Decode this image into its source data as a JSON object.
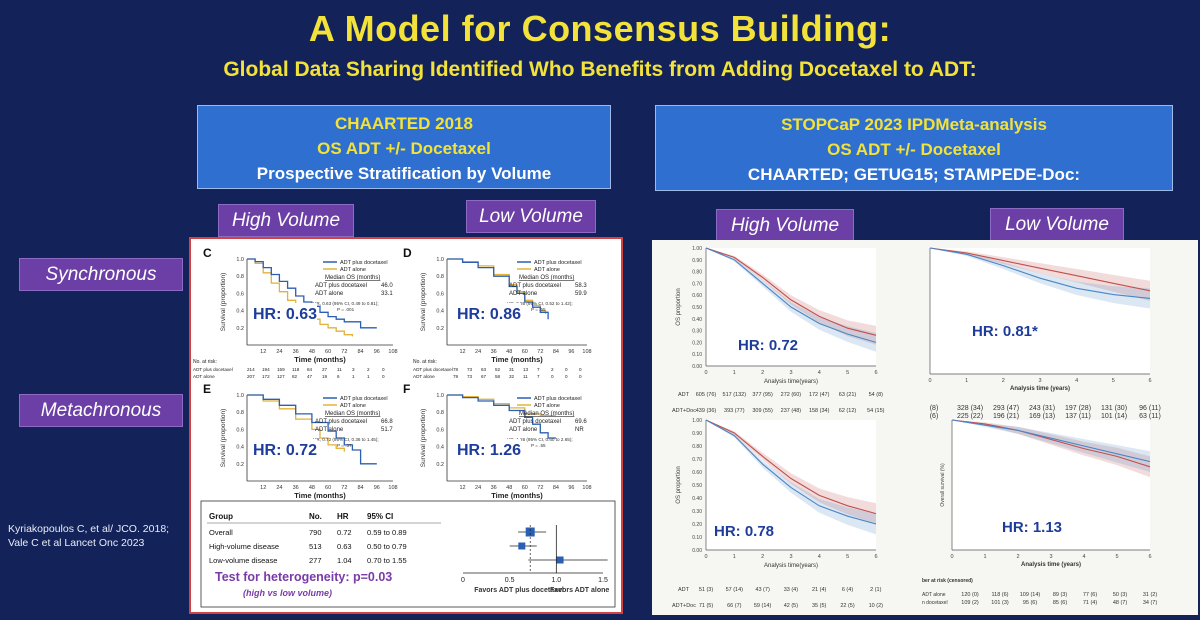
{
  "slide": {
    "title": "A Model for Consensus Building:",
    "subtitle": "Global Data Sharing Identified Who Benefits from Adding Docetaxel to ADT:"
  },
  "chaarted_box": {
    "line1": "CHAARTED 2018",
    "line2": "OS ADT +/- Docetaxel",
    "line3": "Prospective Stratification by Volume"
  },
  "stopcap_box": {
    "line1": "STOPCaP 2023 IPDMeta-analysis",
    "line2": "OS ADT +/- Docetaxel",
    "line3": "CHAARTED; GETUG15; STAMPEDE-Doc:"
  },
  "tags": {
    "high_volume": "High Volume",
    "low_volume": "Low Volume",
    "synchronous": "Synchronous",
    "metachronous": "Metachronous"
  },
  "citation": {
    "line1": "Kyriakopoulos C, et al/ JCO. 2018;",
    "line2": "Vale  C et al Lancet Onc 2023"
  },
  "chaarted_km": {
    "ylabel": "Survival (proportion)",
    "xlabel": "Time (months)",
    "x_ticks": [
      "12",
      "24",
      "36",
      "48",
      "60",
      "72",
      "84",
      "96",
      "108"
    ],
    "y_ticks": [
      "1.0",
      "0.8",
      "0.6",
      "0.4",
      "0.2"
    ],
    "legend": [
      "ADT plus docetaxel",
      "ADT alone"
    ],
    "plots": [
      {
        "letter": "C",
        "hr": "HR: 0.63",
        "median_header": "Median OS (months)",
        "median_rows": [
          [
            "ADT plus docetaxel",
            "46.0"
          ],
          [
            "ADT alone",
            "33.1"
          ]
        ],
        "hr_text": "HR, 0.63 (95% CI, 0.49 to 0.81);",
        "p_text": "P = .001",
        "docetaxel": [
          [
            0,
            1
          ],
          [
            6,
            0.97
          ],
          [
            12,
            0.9
          ],
          [
            18,
            0.82
          ],
          [
            24,
            0.74
          ],
          [
            30,
            0.66
          ],
          [
            36,
            0.57
          ],
          [
            42,
            0.5
          ],
          [
            48,
            0.45
          ],
          [
            54,
            0.38
          ],
          [
            60,
            0.33
          ],
          [
            66,
            0.3
          ],
          [
            72,
            0.27
          ],
          [
            84,
            0.2
          ],
          [
            96,
            0.2
          ]
        ],
        "adt": [
          [
            0,
            1
          ],
          [
            6,
            0.95
          ],
          [
            12,
            0.84
          ],
          [
            18,
            0.72
          ],
          [
            24,
            0.62
          ],
          [
            30,
            0.52
          ],
          [
            36,
            0.44
          ],
          [
            42,
            0.36
          ],
          [
            48,
            0.3
          ],
          [
            54,
            0.24
          ],
          [
            60,
            0.2
          ],
          [
            66,
            0.16
          ],
          [
            72,
            0.12
          ],
          [
            78,
            0.1
          ]
        ]
      },
      {
        "letter": "D",
        "hr": "HR: 0.86",
        "median_header": "Median OS (months)",
        "median_rows": [
          [
            "ADT plus docetaxel",
            "58.3"
          ],
          [
            "ADT alone",
            "59.9"
          ]
        ],
        "hr_text": "HR, 0.86 (95% CI, 0.52 to 1.42);",
        "p_text": "P = .55",
        "docetaxel": [
          [
            0,
            1
          ],
          [
            12,
            0.96
          ],
          [
            24,
            0.9
          ],
          [
            36,
            0.8
          ],
          [
            48,
            0.68
          ],
          [
            54,
            0.6
          ],
          [
            60,
            0.5
          ],
          [
            66,
            0.44
          ],
          [
            72,
            0.38
          ],
          [
            78,
            0.3
          ]
        ],
        "adt": [
          [
            0,
            1
          ],
          [
            12,
            0.97
          ],
          [
            24,
            0.92
          ],
          [
            36,
            0.82
          ],
          [
            48,
            0.7
          ],
          [
            54,
            0.62
          ],
          [
            60,
            0.52
          ],
          [
            66,
            0.46
          ],
          [
            72,
            0.4
          ],
          [
            76,
            0.36
          ]
        ]
      },
      {
        "letter": "E",
        "hr": "HR: 0.72",
        "median_header": "Median OS (months)",
        "median_rows": [
          [
            "ADT plus docetaxel",
            "66.8"
          ],
          [
            "ADT alone",
            "51.7"
          ]
        ],
        "hr_text": "HR, 0.72 (95% CI, 0.36 to 1.45);",
        "p_text": "P = .37",
        "docetaxel": [
          [
            0,
            1
          ],
          [
            12,
            0.95
          ],
          [
            24,
            0.88
          ],
          [
            36,
            0.78
          ],
          [
            48,
            0.68
          ],
          [
            60,
            0.58
          ],
          [
            66,
            0.5
          ],
          [
            72,
            0.42
          ],
          [
            78,
            0.36
          ],
          [
            84,
            0.2
          ],
          [
            96,
            0.2
          ]
        ],
        "adt": [
          [
            0,
            1
          ],
          [
            12,
            0.93
          ],
          [
            24,
            0.84
          ],
          [
            36,
            0.72
          ],
          [
            48,
            0.6
          ],
          [
            54,
            0.5
          ],
          [
            60,
            0.42
          ],
          [
            66,
            0.38
          ],
          [
            72,
            0.34
          ]
        ]
      },
      {
        "letter": "F",
        "hr": "HR: 1.26",
        "median_header": "Median OS (months)",
        "median_rows": [
          [
            "ADT plus docetaxel",
            "69.6"
          ],
          [
            "ADT alone",
            "NR"
          ]
        ],
        "hr_text": "HR, 1.26 (95% CI, 0.60 to 2.65);",
        "p_text": "P = .55",
        "docetaxel": [
          [
            0,
            1
          ],
          [
            12,
            0.97
          ],
          [
            24,
            0.93
          ],
          [
            36,
            0.88
          ],
          [
            48,
            0.82
          ],
          [
            60,
            0.74
          ],
          [
            66,
            0.66
          ],
          [
            72,
            0.56
          ],
          [
            78,
            0.5
          ],
          [
            84,
            0.5
          ]
        ],
        "adt": [
          [
            0,
            1
          ],
          [
            12,
            0.98
          ],
          [
            24,
            0.95
          ],
          [
            36,
            0.9
          ],
          [
            48,
            0.85
          ],
          [
            60,
            0.78
          ],
          [
            72,
            0.76
          ],
          [
            84,
            0.76
          ]
        ]
      }
    ],
    "risk_header": "No. at risk:",
    "risk_c": [
      [
        "ADT plus docetaxel",
        "214",
        "194",
        "159",
        "118",
        "84",
        "27",
        "11",
        "3",
        "2",
        "0"
      ],
      [
        "ADT alone",
        "207",
        "172",
        "127",
        "82",
        "47",
        "19",
        "6",
        "1",
        "1",
        "0"
      ]
    ],
    "risk_d": [
      [
        "ADT plus docetaxel",
        "78",
        "73",
        "63",
        "52",
        "31",
        "13",
        "7",
        "2",
        "0",
        "0"
      ],
      [
        "ADT alone",
        "79",
        "73",
        "67",
        "58",
        "32",
        "11",
        "7",
        "0",
        "0",
        "0"
      ]
    ]
  },
  "forest": {
    "headers": [
      "Group",
      "No.",
      "HR",
      "95% CI"
    ],
    "rows": [
      {
        "group": "Overall",
        "n": "790",
        "hr": "0.72",
        "ci": "0.59 to 0.89",
        "hr_v": 0.72,
        "lo": 0.59,
        "hi": 0.89
      },
      {
        "group": "High-volume disease",
        "n": "513",
        "hr": "0.63",
        "ci": "0.50 to 0.79",
        "hr_v": 0.63,
        "lo": 0.5,
        "hi": 0.79
      },
      {
        "group": "Low-volume disease",
        "n": "277",
        "hr": "1.04",
        "ci": "0.70 to 1.55",
        "hr_v": 1.04,
        "lo": 0.7,
        "hi": 1.55
      }
    ],
    "axis_ticks": [
      "0",
      "0.5",
      "1.0",
      "1.5"
    ],
    "favors_left": "Favors ADT plus docetaxel",
    "favors_right": "Favors ADT alone",
    "heterogeneity": "Test for heterogeneity: p=0.03",
    "heterogeneity_sub": "(high vs low volume)"
  },
  "stopcap": {
    "ylabel": "OS proportion",
    "ylabel_right": "Overall survival (%)",
    "xlabel": "Analysis time(years)",
    "xlabel_right": "Analysis time (years)",
    "x_ticks": [
      "0",
      "1",
      "2",
      "3",
      "4",
      "5",
      "6"
    ],
    "y_ticks": [
      "1.00",
      "0.90",
      "0.80",
      "0.70",
      "0.60",
      "0.50",
      "0.40",
      "0.30",
      "0.20",
      "0.10",
      "0.00"
    ],
    "colors": {
      "adt": "#c0504d",
      "adt_doc": "#4a86c5"
    },
    "plots": [
      {
        "hr": "HR: 0.72",
        "adt": [
          [
            0,
            1
          ],
          [
            1,
            0.92
          ],
          [
            2,
            0.75
          ],
          [
            3,
            0.56
          ],
          [
            4,
            0.42
          ],
          [
            5,
            0.32
          ],
          [
            6,
            0.26
          ]
        ],
        "doc": [
          [
            0,
            1
          ],
          [
            1,
            0.9
          ],
          [
            2,
            0.7
          ],
          [
            3,
            0.5
          ],
          [
            4,
            0.36
          ],
          [
            5,
            0.27
          ],
          [
            6,
            0.2
          ]
        ]
      },
      {
        "hr": "HR: 0.81*",
        "adt": [
          [
            0,
            1
          ],
          [
            1,
            0.96
          ],
          [
            2,
            0.9
          ],
          [
            3,
            0.84
          ],
          [
            4,
            0.78
          ],
          [
            5,
            0.72
          ],
          [
            6,
            0.66
          ]
        ],
        "doc": [
          [
            0,
            1
          ],
          [
            1,
            0.95
          ],
          [
            2,
            0.86
          ],
          [
            3,
            0.76
          ],
          [
            4,
            0.68
          ],
          [
            5,
            0.63
          ],
          [
            6,
            0.6
          ]
        ]
      },
      {
        "hr": "HR: 0.78",
        "adt": [
          [
            0,
            1
          ],
          [
            1,
            0.9
          ],
          [
            2,
            0.72
          ],
          [
            3,
            0.55
          ],
          [
            4,
            0.42
          ],
          [
            5,
            0.34
          ],
          [
            6,
            0.28
          ]
        ],
        "doc": [
          [
            0,
            1
          ],
          [
            1,
            0.88
          ],
          [
            2,
            0.66
          ],
          [
            3,
            0.48
          ],
          [
            4,
            0.34
          ],
          [
            5,
            0.26
          ],
          [
            6,
            0.2
          ]
        ]
      },
      {
        "hr": "HR: 1.13",
        "adt": [
          [
            0,
            1
          ],
          [
            1,
            0.97
          ],
          [
            2,
            0.92
          ],
          [
            3,
            0.85
          ],
          [
            4,
            0.78
          ],
          [
            5,
            0.72
          ],
          [
            6,
            0.64
          ]
        ],
        "doc": [
          [
            0,
            1
          ],
          [
            1,
            0.96
          ],
          [
            2,
            0.92
          ],
          [
            3,
            0.86
          ],
          [
            4,
            0.8
          ],
          [
            5,
            0.74
          ],
          [
            6,
            0.68
          ]
        ]
      }
    ],
    "risk_top": {
      "adt_label": "ADT",
      "doc_label": "ADT+Doc",
      "adt": [
        "605 (76)",
        "517 (132)",
        "377 (95)",
        "272 (60)",
        "172 (47)",
        "63 (21)",
        "54 (8)"
      ],
      "doc": [
        "439 (36)",
        "393 (77)",
        "309 (55)",
        "237 (48)",
        "158 (34)",
        "62 (12)",
        "54 (15)"
      ]
    },
    "risk_bottom": {
      "adt_label": "ADT",
      "doc_label": "ADT+Doc",
      "adt": [
        "51 (3)",
        "57 (14)",
        "43 (7)",
        "33 (4)",
        "21 (4)",
        "6 (4)",
        "2 (1)"
      ],
      "doc": [
        "71 (5)",
        "66 (7)",
        "59 (14)",
        "42 (5)",
        "35 (5)",
        "22 (5)",
        "10 (2)"
      ]
    },
    "risk_right_top": {
      "row1": [
        "(8)",
        "328 (34)",
        "293 (47)",
        "243 (31)",
        "197 (28)",
        "131 (30)",
        "96 (11)"
      ],
      "row2": [
        "(6)",
        "225 (22)",
        "196 (21)",
        "169 (13)",
        "137 (11)",
        "101 (14)",
        "63 (11)"
      ]
    },
    "risk_right_bottom": {
      "header": "ber at risk (censored)",
      "adt_label": "ADT alone",
      "doc_label": "n docetaxel",
      "adt": [
        "120 (0)",
        "118 (6)",
        "109 (14)",
        "89 (3)",
        "77 (6)",
        "50 (3)",
        "31 (2)"
      ],
      "doc": [
        "109 (2)",
        "101 (3)",
        "95 (6)",
        "85 (6)",
        "71 (4)",
        "48 (7)",
        "34 (7)"
      ]
    }
  }
}
